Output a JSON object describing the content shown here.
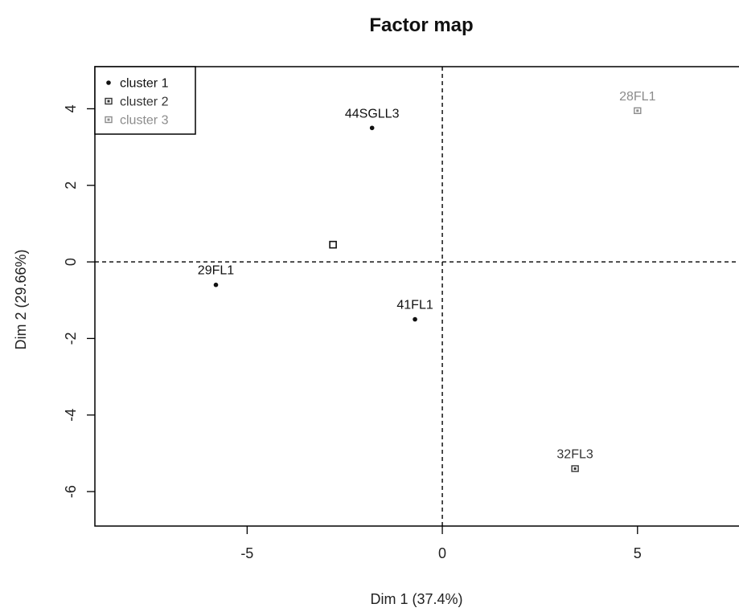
{
  "chart_data": {
    "type": "scatter",
    "title": "Factor map",
    "xlabel": "Dim 1 (37.4%)",
    "ylabel": "Dim 2 (29.66%)",
    "xlim": [
      -8.9,
      7.6
    ],
    "ylim": [
      -6.9,
      5.1
    ],
    "x_ticks": [
      -5,
      0,
      5
    ],
    "y_ticks": [
      -6,
      -4,
      -2,
      0,
      2,
      4
    ],
    "reference_lines": {
      "x": 0,
      "y": 0,
      "style": "dashed"
    },
    "grid": false,
    "legend": {
      "position": "top-left",
      "entries": [
        {
          "label": "cluster 1",
          "color": "#111111",
          "marker": "dot"
        },
        {
          "label": "cluster 2",
          "color": "#333333",
          "marker": "square"
        },
        {
          "label": "cluster 3",
          "color": "#8c8c8c",
          "marker": "square"
        }
      ]
    },
    "points": [
      {
        "label": "44SGLL3",
        "x": -1.8,
        "y": 3.5,
        "cluster": 1
      },
      {
        "label": "29FL1",
        "x": -5.8,
        "y": -0.6,
        "cluster": 1
      },
      {
        "label": "41FL1",
        "x": -0.7,
        "y": -1.5,
        "cluster": 1
      },
      {
        "label": "32FL3",
        "x": 3.4,
        "y": -5.4,
        "cluster": 2
      },
      {
        "label": "28FL1",
        "x": 5.0,
        "y": 3.95,
        "cluster": 3
      }
    ],
    "centroids": [
      {
        "x": -2.8,
        "y": 0.45,
        "color": "#111111"
      }
    ],
    "cluster_colors": {
      "1": "#111111",
      "2": "#333333",
      "3": "#8c8c8c"
    }
  }
}
